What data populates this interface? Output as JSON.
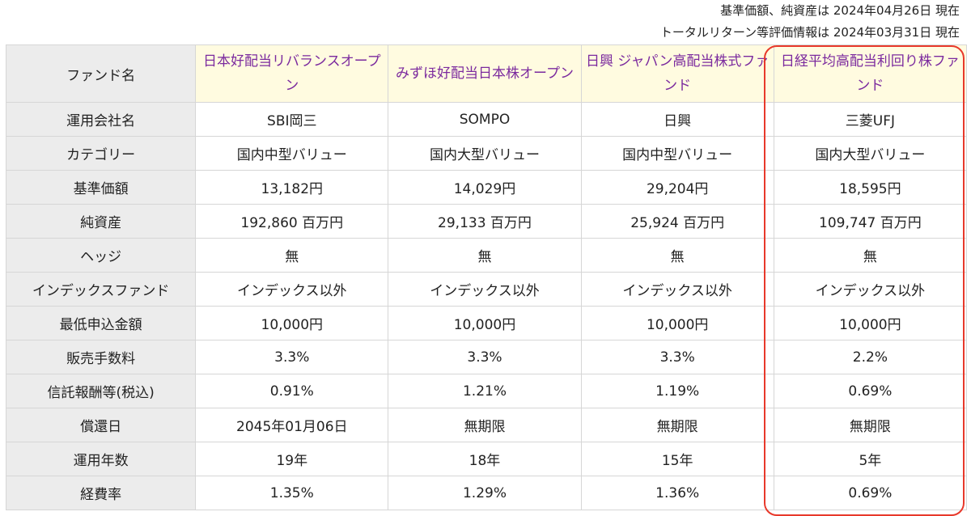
{
  "header_notes": {
    "line1": "基準価額、純資産は 2024年04月26日 現在",
    "line2": "トータルリターン等評価情報は 2024年03月31日 現在"
  },
  "table": {
    "corner_label": "ファンド名",
    "funds": [
      "日本好配当リバランスオープン",
      "みずほ好配当日本株オープン",
      "日興 ジャパン高配当株式ファンド",
      "日経平均高配当利回り株ファンド"
    ],
    "rows": [
      {
        "label": "運用会社名",
        "values": [
          "SBI岡三",
          "SOMPO",
          "日興",
          "三菱UFJ"
        ]
      },
      {
        "label": "カテゴリー",
        "values": [
          "国内中型バリュー",
          "国内大型バリュー",
          "国内中型バリュー",
          "国内大型バリュー"
        ]
      },
      {
        "label": "基準価額",
        "values": [
          "13,182円",
          "14,029円",
          "29,204円",
          "18,595円"
        ]
      },
      {
        "label": "純資産",
        "values": [
          "192,860 百万円",
          "29,133 百万円",
          "25,924 百万円",
          "109,747 百万円"
        ]
      },
      {
        "label": "ヘッジ",
        "values": [
          "無",
          "無",
          "無",
          "無"
        ]
      },
      {
        "label": "インデックスファンド",
        "values": [
          "インデックス以外",
          "インデックス以外",
          "インデックス以外",
          "インデックス以外"
        ]
      },
      {
        "label": "最低申込金額",
        "values": [
          "10,000円",
          "10,000円",
          "10,000円",
          "10,000円"
        ]
      },
      {
        "label": "販売手数料",
        "values": [
          "3.3%",
          "3.3%",
          "3.3%",
          "2.2%"
        ]
      },
      {
        "label": "信託報酬等(税込)",
        "values": [
          "0.91%",
          "1.21%",
          "1.19%",
          "0.69%"
        ]
      },
      {
        "label": "償還日",
        "values": [
          "2045年01月06日",
          "無期限",
          "無期限",
          "無期限"
        ]
      },
      {
        "label": "運用年数",
        "values": [
          "19年",
          "18年",
          "15年",
          "5年"
        ]
      },
      {
        "label": "経費率",
        "values": [
          "1.35%",
          "1.29%",
          "1.36%",
          "0.69%"
        ]
      }
    ]
  },
  "colors": {
    "fund_name_text": "#7b2a9e",
    "fund_name_bg": "#fffbe0",
    "row_header_bg": "#ececec",
    "highlight_border": "#e8392b"
  }
}
